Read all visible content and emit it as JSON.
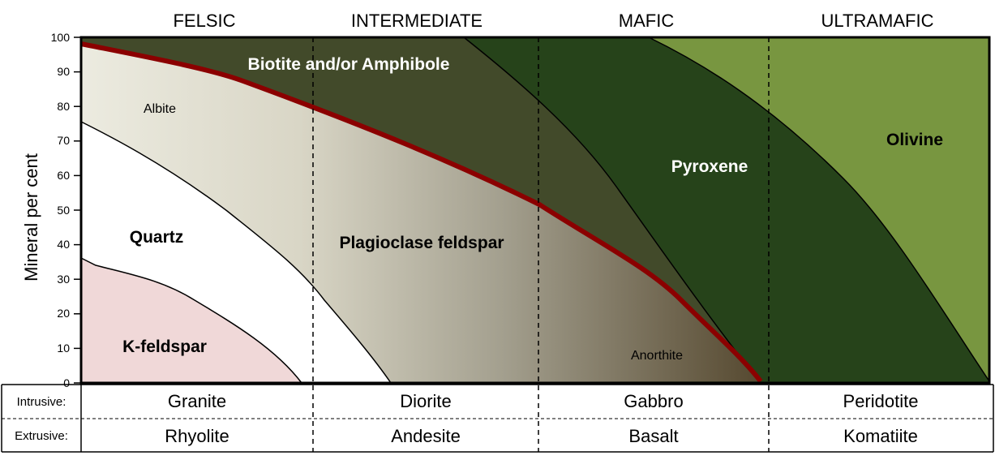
{
  "title": "",
  "categories": [
    "FELSIC",
    "INTERMEDIATE",
    "MAFIC",
    "ULTRAMAFIC"
  ],
  "y_axis": {
    "label": "Mineral per cent",
    "ticks": [
      "0",
      "10",
      "20",
      "30",
      "40",
      "50",
      "60",
      "70",
      "80",
      "90",
      "100"
    ],
    "range": [
      0,
      100
    ]
  },
  "fields": {
    "k_feldspar": "K-feldspar",
    "quartz": "Quartz",
    "albite": "Albite",
    "plagioclase": "Plagioclase feldspar",
    "anorthite": "Anorthite",
    "biotite_amphibole": "Biotite and/or Amphibole",
    "pyroxene": "Pyroxene",
    "olivine": "Olivine"
  },
  "colors": {
    "k_feldspar": "#f0d8d8",
    "quartz": "#ffffff",
    "plagioclase_light": "#ecebe0",
    "plagioclase_dark": "#5c5138",
    "biotite_amphibole": "#424a2a",
    "pyroxene": "#26431a",
    "olivine": "#789640",
    "plagioclase_boundary_line": "#8b0000"
  },
  "table": {
    "row_labels": {
      "intrusive": "Intrusive:",
      "extrusive": "Extrusive:"
    },
    "intrusive": [
      "Granite",
      "Diorite",
      "Gabbro",
      "Peridotite"
    ],
    "extrusive": [
      "Rhyolite",
      "Andesite",
      "Basalt",
      "Komatiite"
    ]
  }
}
